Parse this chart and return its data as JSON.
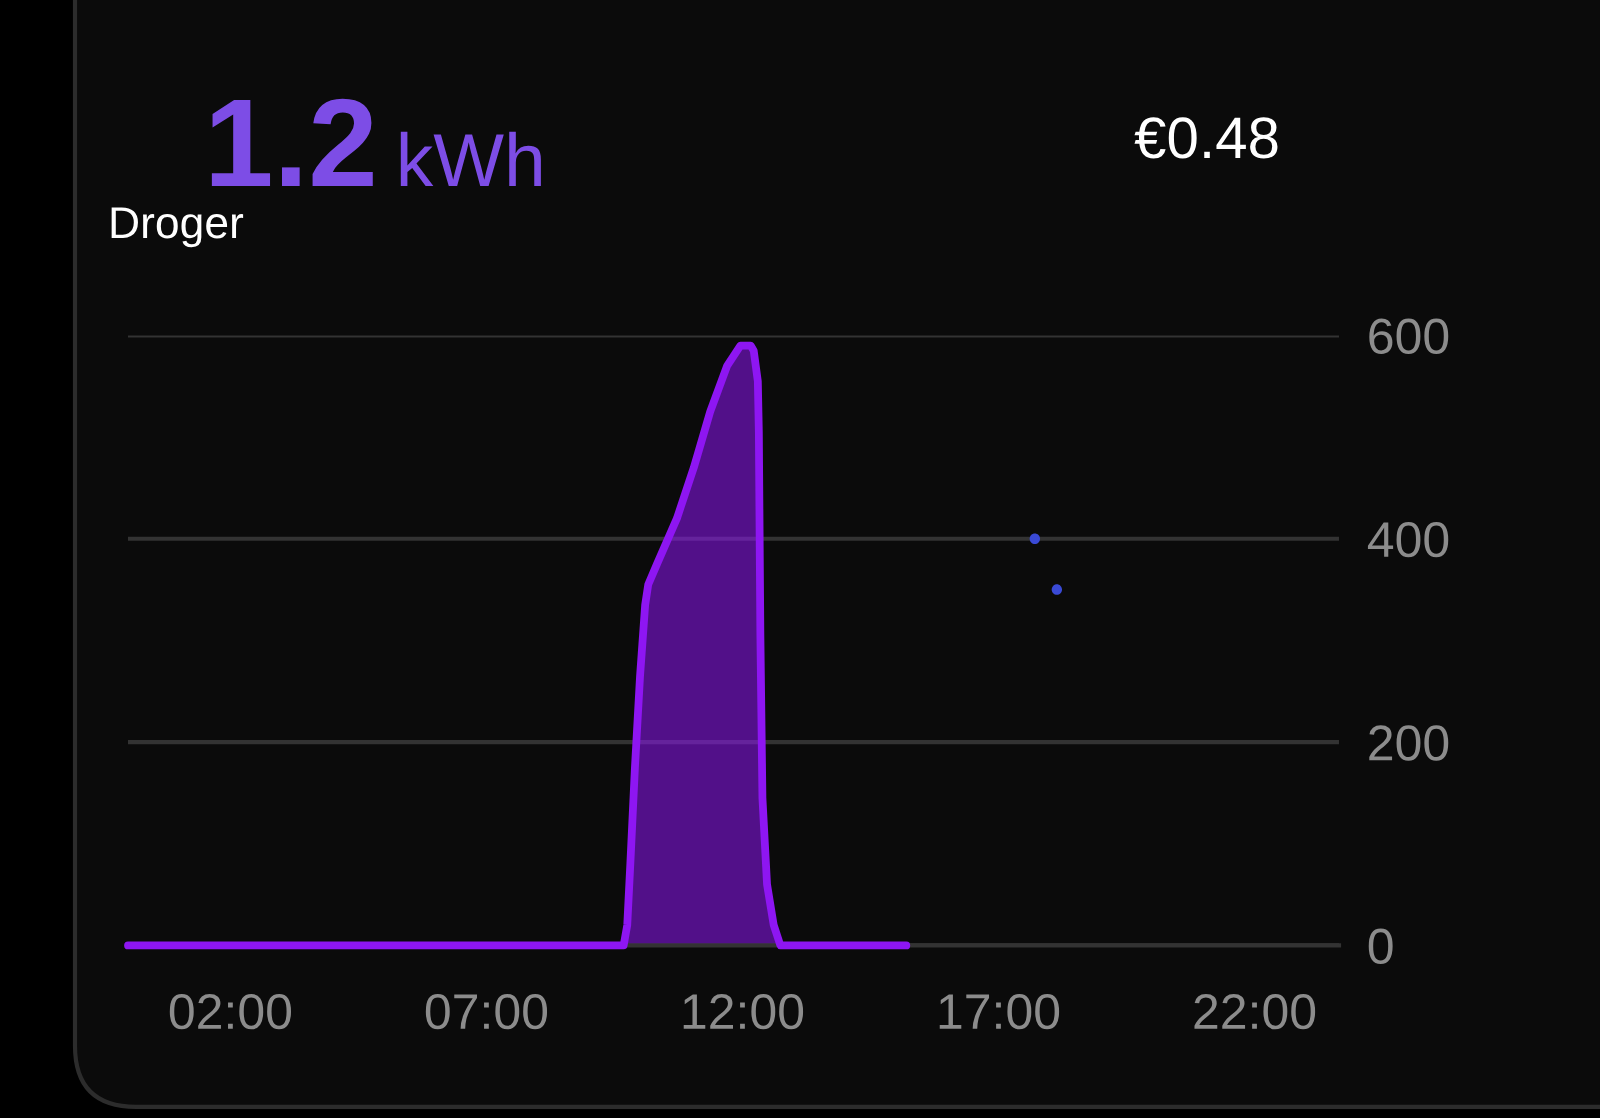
{
  "chart_data": {
    "type": "area",
    "title": "1.2",
    "subtitle": "Droger",
    "annotations": [
      "kWh",
      "€0.48"
    ],
    "xlim": [
      0,
      23.65
    ],
    "xticks": [
      {
        "value": 2,
        "label": "02:00"
      },
      {
        "value": 7,
        "label": "07:00"
      },
      {
        "value": 12,
        "label": "12:00"
      },
      {
        "value": 17,
        "label": "17:00"
      },
      {
        "value": 22,
        "label": "22:00"
      }
    ],
    "ylim": [
      0,
      600
    ],
    "yticks": [
      0,
      200,
      400,
      600
    ],
    "grid": "y",
    "series": [
      {
        "color": "#8e16f2",
        "x": [
          0,
          9.68,
          9.75,
          9.81,
          9.9,
          10.0,
          10.1,
          10.16,
          10.33,
          10.72,
          11.05,
          11.37,
          11.7,
          11.96,
          12.16,
          12.22,
          12.3,
          12.32,
          12.35,
          12.39,
          12.48,
          12.61,
          12.74,
          15.2
        ],
        "values": [
          0,
          0,
          20,
          80,
          175,
          265,
          335,
          355,
          375,
          420,
          470,
          525,
          570,
          590,
          590,
          585,
          555,
          505,
          305,
          145,
          60,
          20,
          0,
          0
        ]
      },
      {
        "type": "scatter",
        "color": "#3a4ad6",
        "marker": "circle",
        "x": [
          17.71,
          18.14
        ],
        "values": [
          400,
          350
        ]
      }
    ]
  }
}
